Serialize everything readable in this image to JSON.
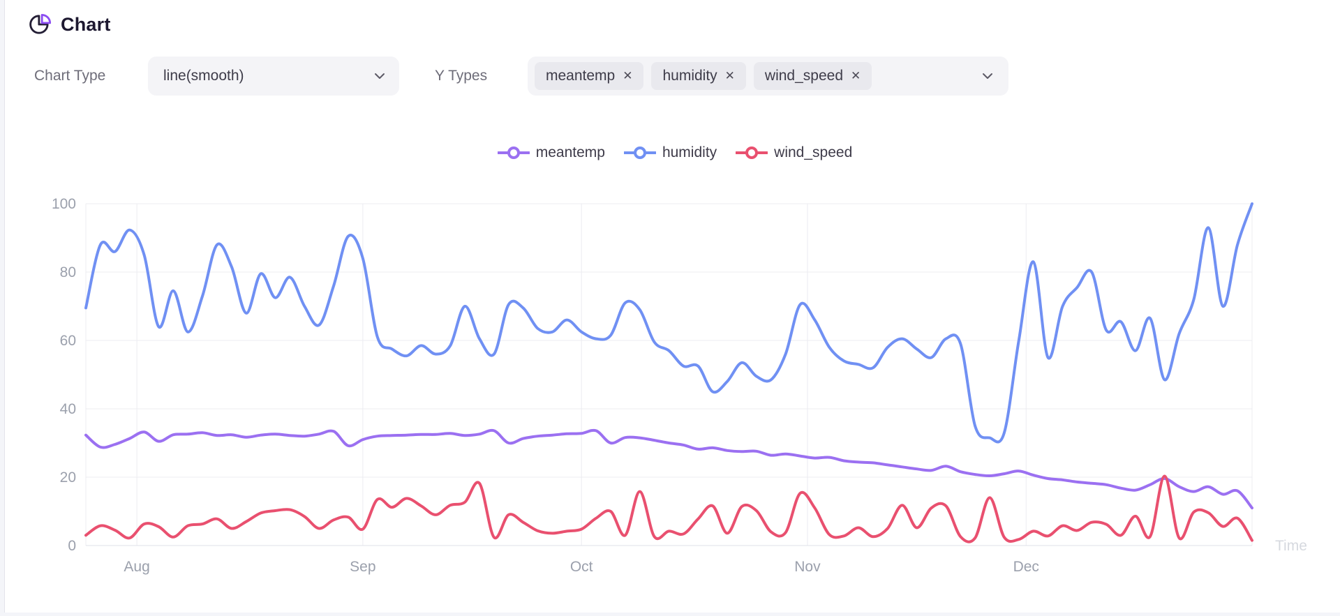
{
  "header": {
    "title": "Chart"
  },
  "controls": {
    "chart_type_label": "Chart Type",
    "chart_type_value": "line(smooth)",
    "y_types_label": "Y Types",
    "y_types": [
      "meantemp",
      "humidity",
      "wind_speed"
    ],
    "remove_icon_glyph": "✕"
  },
  "icons": {
    "header_icon": "pie-chart-icon",
    "dropdown_icon": "chevron-down-icon"
  },
  "colors": {
    "accent_purple": "#8b4df2",
    "icon_dark": "#241e35",
    "series_meantemp": "#9b70f1",
    "series_humidity": "#7090f3",
    "series_wind_speed": "#e9506f",
    "grid": "#ececf1",
    "axis_line": "#dfe1e8",
    "axis_text": "#9ba0ac",
    "axis_name_text": "#d6d9df"
  },
  "chart_data": {
    "type": "line",
    "smooth": true,
    "grid": true,
    "legend": {
      "position": "top",
      "items": [
        "meantemp",
        "humidity",
        "wind_speed"
      ]
    },
    "x_axis": {
      "label": "Time",
      "tick_labels": [
        "Aug",
        "Sep",
        "Oct",
        "Nov",
        "Dec"
      ],
      "tick_days": [
        7,
        38,
        68,
        99,
        129
      ],
      "range_days": [
        0,
        160
      ]
    },
    "y_axis": {
      "min": 0,
      "max": 100,
      "ticks": [
        0,
        20,
        40,
        60,
        80,
        100
      ]
    },
    "x_days": [
      0,
      2,
      4,
      6,
      8,
      10,
      12,
      14,
      16,
      18,
      20,
      22,
      24,
      26,
      28,
      30,
      32,
      34,
      36,
      38,
      40,
      42,
      44,
      46,
      48,
      50,
      52,
      54,
      56,
      58,
      60,
      62,
      64,
      66,
      68,
      70,
      72,
      74,
      76,
      78,
      80,
      82,
      84,
      86,
      88,
      90,
      92,
      94,
      96,
      98,
      100,
      102,
      104,
      106,
      108,
      110,
      112,
      114,
      116,
      118,
      120,
      122,
      124,
      126,
      128,
      130,
      132,
      134,
      136,
      138,
      140,
      142,
      144,
      146,
      148,
      150,
      152,
      154,
      156,
      158,
      160
    ],
    "series": [
      {
        "name": "meantemp",
        "color": "#9b70f1",
        "values": [
          32.3,
          28.8,
          29.6,
          31.3,
          33.2,
          30.5,
          32.4,
          32.6,
          33,
          32.2,
          32.4,
          31.7,
          32.3,
          32.6,
          32.2,
          32,
          32.6,
          33.4,
          29.2,
          31,
          32,
          32.2,
          32.3,
          32.5,
          32.5,
          32.8,
          32.2,
          32.6,
          33.6,
          30,
          31.3,
          32,
          32.3,
          32.7,
          32.8,
          33.6,
          30,
          31.6,
          31.5,
          30.8,
          30,
          29.4,
          28.2,
          28.6,
          27.8,
          27.5,
          27.6,
          26.4,
          26.8,
          26.2,
          25.6,
          25.8,
          24.8,
          24.4,
          24.2,
          23.6,
          23,
          22.4,
          22,
          23.2,
          21.6,
          20.8,
          20.4,
          21,
          21.8,
          20.6,
          19.6,
          19.2,
          18.6,
          18.2,
          17.8,
          16.8,
          16.2,
          17.8,
          19.6,
          17.2,
          15.8,
          17.2,
          15,
          16,
          11
        ]
      },
      {
        "name": "humidity",
        "color": "#7090f3",
        "values": [
          69.5,
          88,
          86,
          92.3,
          85,
          64,
          74.5,
          62.5,
          73,
          88,
          81.5,
          68,
          79.5,
          72.5,
          78.5,
          70,
          64.5,
          76,
          90.5,
          84,
          61,
          57.5,
          55.5,
          58.5,
          56,
          58.5,
          70,
          60.5,
          56,
          70.5,
          69.5,
          63.5,
          62.5,
          66,
          62.5,
          60.5,
          61.5,
          71,
          69,
          59.5,
          57,
          52.5,
          52.5,
          45,
          48,
          53.5,
          49.5,
          48.5,
          56,
          70.5,
          66,
          58,
          54,
          53,
          52,
          58,
          60.5,
          57.5,
          55,
          60.5,
          59,
          35,
          31.5,
          33,
          60,
          83,
          55,
          70,
          75.5,
          80,
          63,
          65.5,
          57,
          66.5,
          48.5,
          62,
          72,
          93,
          70,
          88,
          100
        ]
      },
      {
        "name": "wind_speed",
        "color": "#e9506f",
        "values": [
          3,
          5.8,
          4.5,
          2.2,
          6.3,
          5.5,
          2.5,
          5.8,
          6.3,
          7.8,
          5,
          7,
          9.5,
          10.2,
          10.5,
          8.5,
          5,
          7.5,
          8.3,
          4.8,
          13.5,
          11.2,
          13.8,
          11.6,
          9,
          11.8,
          12.7,
          18.2,
          2.4,
          9,
          6.8,
          4.3,
          3.6,
          4.2,
          4.8,
          8,
          10,
          3,
          15.8,
          2.6,
          4.2,
          3.4,
          7.8,
          11.6,
          3.6,
          11.4,
          10.2,
          4,
          3.8,
          15.3,
          11,
          3.2,
          2.8,
          5.2,
          2.6,
          5,
          11.8,
          5.2,
          11,
          11.6,
          2.6,
          2.2,
          14,
          2.4,
          1.8,
          4.2,
          2.8,
          5.8,
          4.4,
          6.8,
          6.2,
          3,
          8.6,
          2.6,
          20.3,
          2.2,
          9.8,
          9.6,
          5.6,
          8,
          1.5
        ]
      }
    ]
  }
}
